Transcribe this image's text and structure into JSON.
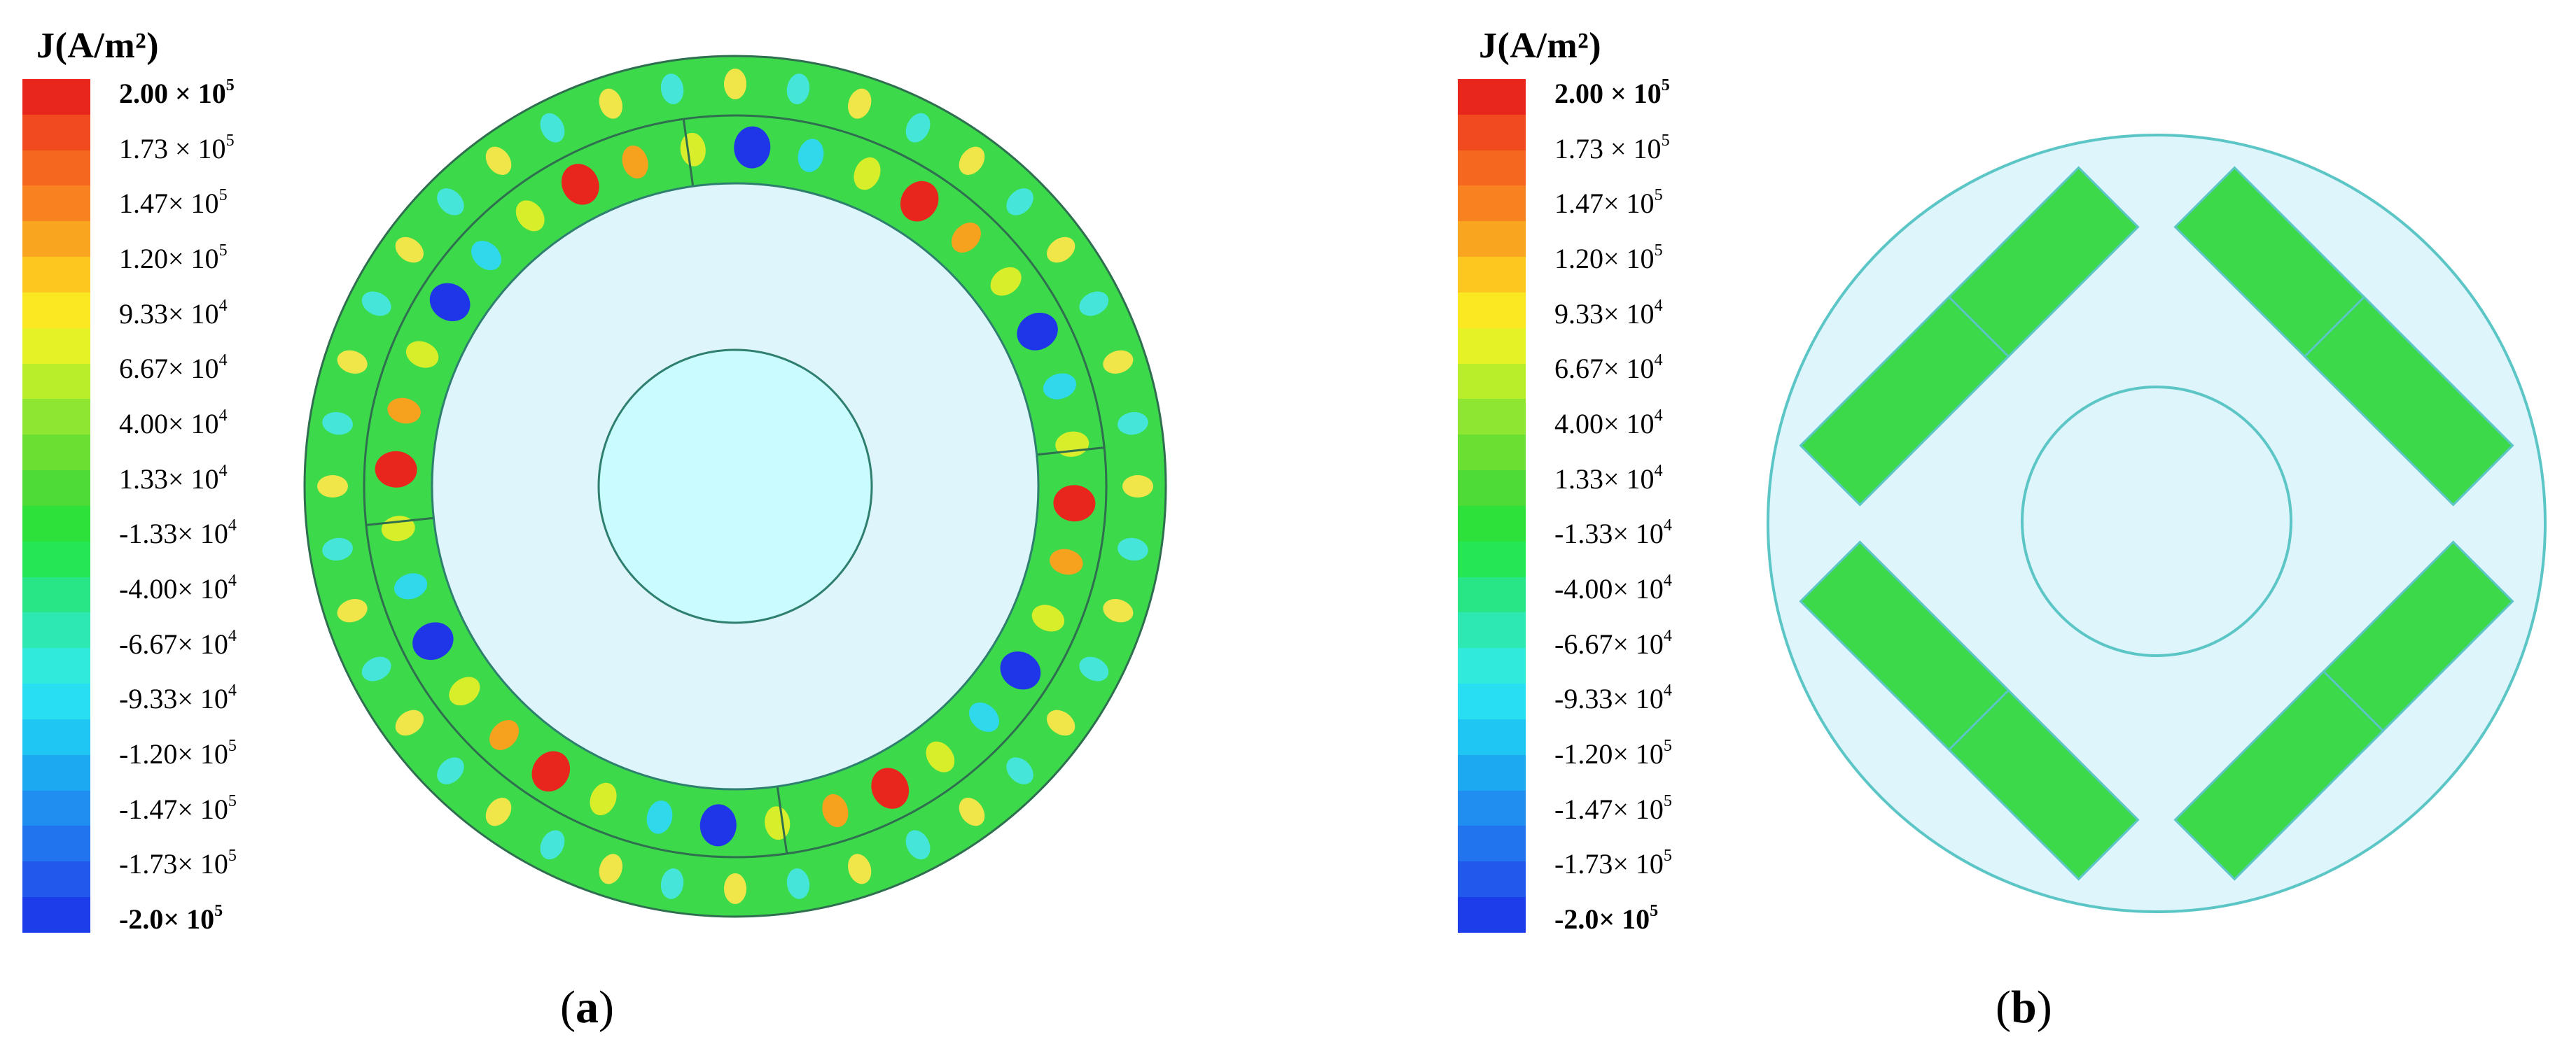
{
  "panels": [
    {
      "id": "a",
      "label_open": "(",
      "label_letter": "a",
      "label_close": ")",
      "legend_title": "J(A/m²)"
    },
    {
      "id": "b",
      "label_open": "(",
      "label_letter": "b",
      "label_close": ")",
      "legend_title": "J(A/m²)"
    }
  ],
  "legend": {
    "quantity": "J",
    "unit": "A/m²",
    "ticks": [
      {
        "mantissa": "2.00 × 10",
        "exp": "5",
        "bold": true
      },
      {
        "mantissa": "1.73 × 10",
        "exp": "5",
        "bold": false
      },
      {
        "mantissa": "1.47× 10",
        "exp": "5",
        "bold": false
      },
      {
        "mantissa": "1.20× 10",
        "exp": "5",
        "bold": false
      },
      {
        "mantissa": "9.33× 10",
        "exp": "4",
        "bold": false
      },
      {
        "mantissa": "6.67× 10",
        "exp": "4",
        "bold": false
      },
      {
        "mantissa": "4.00× 10",
        "exp": "4",
        "bold": false
      },
      {
        "mantissa": "1.33× 10",
        "exp": "4",
        "bold": false
      },
      {
        "mantissa": "-1.33× 10",
        "exp": "4",
        "bold": false
      },
      {
        "mantissa": "-4.00× 10",
        "exp": "4",
        "bold": false
      },
      {
        "mantissa": "-6.67× 10",
        "exp": "4",
        "bold": false
      },
      {
        "mantissa": "-9.33× 10",
        "exp": "4",
        "bold": false
      },
      {
        "mantissa": "-1.20× 10",
        "exp": "5",
        "bold": false
      },
      {
        "mantissa": "-1.47× 10",
        "exp": "5",
        "bold": false
      },
      {
        "mantissa": "-1.73× 10",
        "exp": "5",
        "bold": false
      },
      {
        "mantissa": "-2.0× 10",
        "exp": "5",
        "bold": true
      }
    ],
    "colors": [
      "#e8261d",
      "#f04a1e",
      "#f5661f",
      "#f7821f",
      "#f9a51f",
      "#fcc81f",
      "#fbe823",
      "#e4f226",
      "#b9ee2b",
      "#8fe632",
      "#6cdf33",
      "#4edb35",
      "#2ee03a",
      "#25e653",
      "#28e685",
      "#2ee8b1",
      "#30eadc",
      "#28dff2",
      "#1fc6f4",
      "#1da9f2",
      "#1f8ef0",
      "#2174ee",
      "#2358ec",
      "#1e3dea"
    ]
  },
  "colors": {
    "background": "#ffffff",
    "field_green": "#3cd94a",
    "hot": "#e8261d",
    "cold": "#1f36e8",
    "air": "#def5fb",
    "shaft": "#c9fbff",
    "outline": "#4aa3a3"
  }
}
